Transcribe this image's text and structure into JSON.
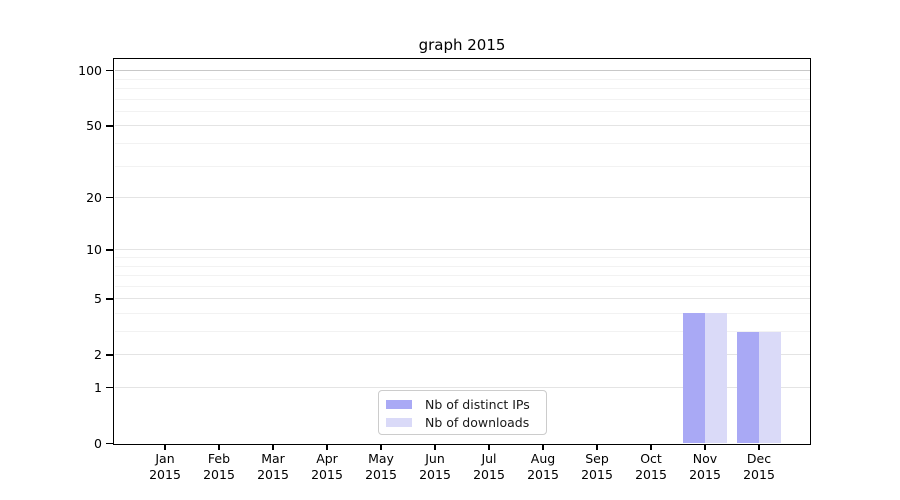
{
  "title": "graph 2015",
  "chart_data": {
    "type": "bar",
    "title": "graph 2015",
    "y_scale": "log10(value+1)",
    "ylim": [
      0,
      115
    ],
    "yticks": [
      0,
      1,
      2,
      5,
      10,
      20,
      50,
      100
    ],
    "minor_gridlines": [
      3,
      4,
      6,
      7,
      8,
      9,
      30,
      40,
      60,
      70,
      80,
      90
    ],
    "grid": true,
    "legend_position": "lower center",
    "year": "2015",
    "categories": [
      "Jan",
      "Feb",
      "Mar",
      "Apr",
      "May",
      "Jun",
      "Jul",
      "Aug",
      "Sep",
      "Oct",
      "Nov",
      "Dec"
    ],
    "series": [
      {
        "name": "Nb of distinct IPs",
        "color": "#a9a9f5",
        "values": [
          0,
          0,
          0,
          0,
          0,
          0,
          0,
          0,
          0,
          0,
          4,
          3
        ]
      },
      {
        "name": "Nb of downloads",
        "color": "#dadaf8",
        "values": [
          0,
          0,
          0,
          0,
          0,
          0,
          0,
          0,
          0,
          0,
          4,
          3
        ]
      }
    ]
  },
  "colors": {
    "background": "#ffffff",
    "axis": "#000000",
    "text": "#000000",
    "grid_major": "#e4e4e4",
    "grid_minor": "#f2f2f2",
    "grid_top": "#c8c8c8",
    "legend_border": "#cccccc"
  }
}
